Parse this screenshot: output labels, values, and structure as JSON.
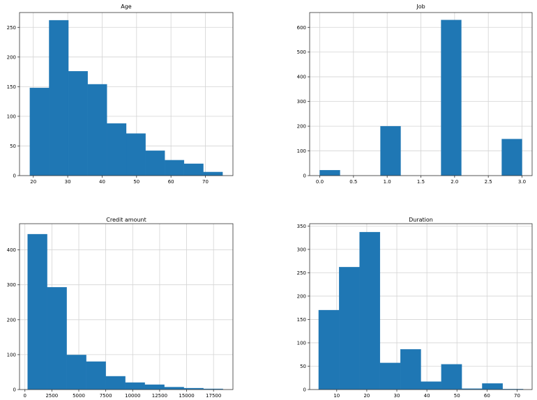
{
  "figure": {
    "bar_color": "#1f77b4",
    "grid_color": "#d4d4d4",
    "background": "#ffffff"
  },
  "chart_data": [
    {
      "type": "bar",
      "title": "Age",
      "xlim": [
        16,
        78
      ],
      "ylim": [
        0,
        275
      ],
      "xticks": [
        20,
        30,
        40,
        50,
        60,
        70
      ],
      "xtick_labels": [
        "20",
        "30",
        "40",
        "50",
        "60",
        "70"
      ],
      "yticks": [
        0,
        50,
        100,
        150,
        200,
        250
      ],
      "ytick_labels": [
        "0",
        "50",
        "100",
        "150",
        "200",
        "250"
      ],
      "grid": true,
      "bin_edges": [
        19,
        24.6,
        30.2,
        35.8,
        41.4,
        47,
        52.6,
        58.2,
        63.8,
        69.4,
        75
      ],
      "values": [
        148,
        262,
        176,
        154,
        88,
        71,
        42,
        26,
        20,
        6
      ]
    },
    {
      "type": "bar",
      "title": "Job",
      "xlim": [
        -0.15,
        3.15
      ],
      "ylim": [
        0,
        660
      ],
      "xticks": [
        0,
        0.5,
        1,
        1.5,
        2,
        2.5,
        3
      ],
      "xtick_labels": [
        "0.0",
        "0.5",
        "1.0",
        "1.5",
        "2.0",
        "2.5",
        "3.0"
      ],
      "yticks": [
        0,
        100,
        200,
        300,
        400,
        500,
        600
      ],
      "ytick_labels": [
        "0",
        "100",
        "200",
        "300",
        "400",
        "500",
        "600"
      ],
      "grid": true,
      "bin_edges": [
        0,
        0.3,
        0.6,
        0.9,
        1.2,
        1.5,
        1.8,
        2.1,
        2.4,
        2.7,
        3.0
      ],
      "values": [
        22,
        0,
        0,
        200,
        0,
        0,
        630,
        0,
        0,
        148
      ]
    },
    {
      "type": "bar",
      "title": "Credit amount",
      "xlim": [
        -500,
        19300
      ],
      "ylim": [
        0,
        475
      ],
      "xticks": [
        0,
        2500,
        5000,
        7500,
        10000,
        12500,
        15000,
        17500
      ],
      "xtick_labels": [
        "0",
        "2500",
        "5000",
        "7500",
        "10000",
        "12500",
        "15000",
        "17500"
      ],
      "yticks": [
        0,
        100,
        200,
        300,
        400
      ],
      "ytick_labels": [
        "0",
        "100",
        "200",
        "300",
        "400"
      ],
      "grid": true,
      "bin_edges": [
        250,
        2062,
        3874,
        5686,
        7498,
        9310,
        11122,
        12934,
        14746,
        16558,
        18370
      ],
      "values": [
        445,
        293,
        99,
        80,
        38,
        20,
        14,
        7,
        4,
        2
      ]
    },
    {
      "type": "bar",
      "title": "Duration",
      "xlim": [
        1,
        75
      ],
      "ylim": [
        0,
        355
      ],
      "xticks": [
        10,
        20,
        30,
        40,
        50,
        60,
        70
      ],
      "xtick_labels": [
        "10",
        "20",
        "30",
        "40",
        "50",
        "60",
        "70"
      ],
      "yticks": [
        0,
        50,
        100,
        150,
        200,
        250,
        300,
        350
      ],
      "ytick_labels": [
        "0",
        "50",
        "100",
        "150",
        "200",
        "250",
        "300",
        "350"
      ],
      "grid": true,
      "bin_edges": [
        4,
        10.8,
        17.6,
        24.4,
        31.2,
        38,
        44.8,
        51.6,
        58.4,
        65.2,
        72
      ],
      "values": [
        170,
        262,
        337,
        57,
        86,
        17,
        54,
        2,
        13,
        1
      ]
    }
  ]
}
